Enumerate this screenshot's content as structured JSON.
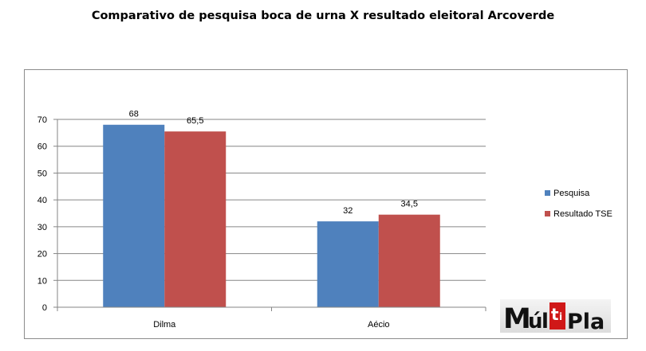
{
  "title": "Comparativo de pesquisa boca de urna X resultado eleitoral Arcoverde",
  "colors": {
    "pesquisa": "#4f81bd",
    "tse": "#c0504d",
    "grid": "#868686",
    "axis": "#868686"
  },
  "chart_data": {
    "type": "bar",
    "categories": [
      "Dilma",
      "Aécio"
    ],
    "series": [
      {
        "name": "Pesquisa",
        "values": [
          68,
          32
        ],
        "labels": [
          "68",
          "32"
        ]
      },
      {
        "name": "Resultado TSE",
        "values": [
          65.5,
          34.5
        ],
        "labels": [
          "65,5",
          "34,5"
        ]
      }
    ],
    "ylim": [
      0,
      70
    ],
    "yticks": [
      0,
      10,
      20,
      30,
      40,
      50,
      60,
      70
    ],
    "grid": true,
    "legend_position": "right"
  },
  "logo": {
    "text": "MúltiPla"
  }
}
